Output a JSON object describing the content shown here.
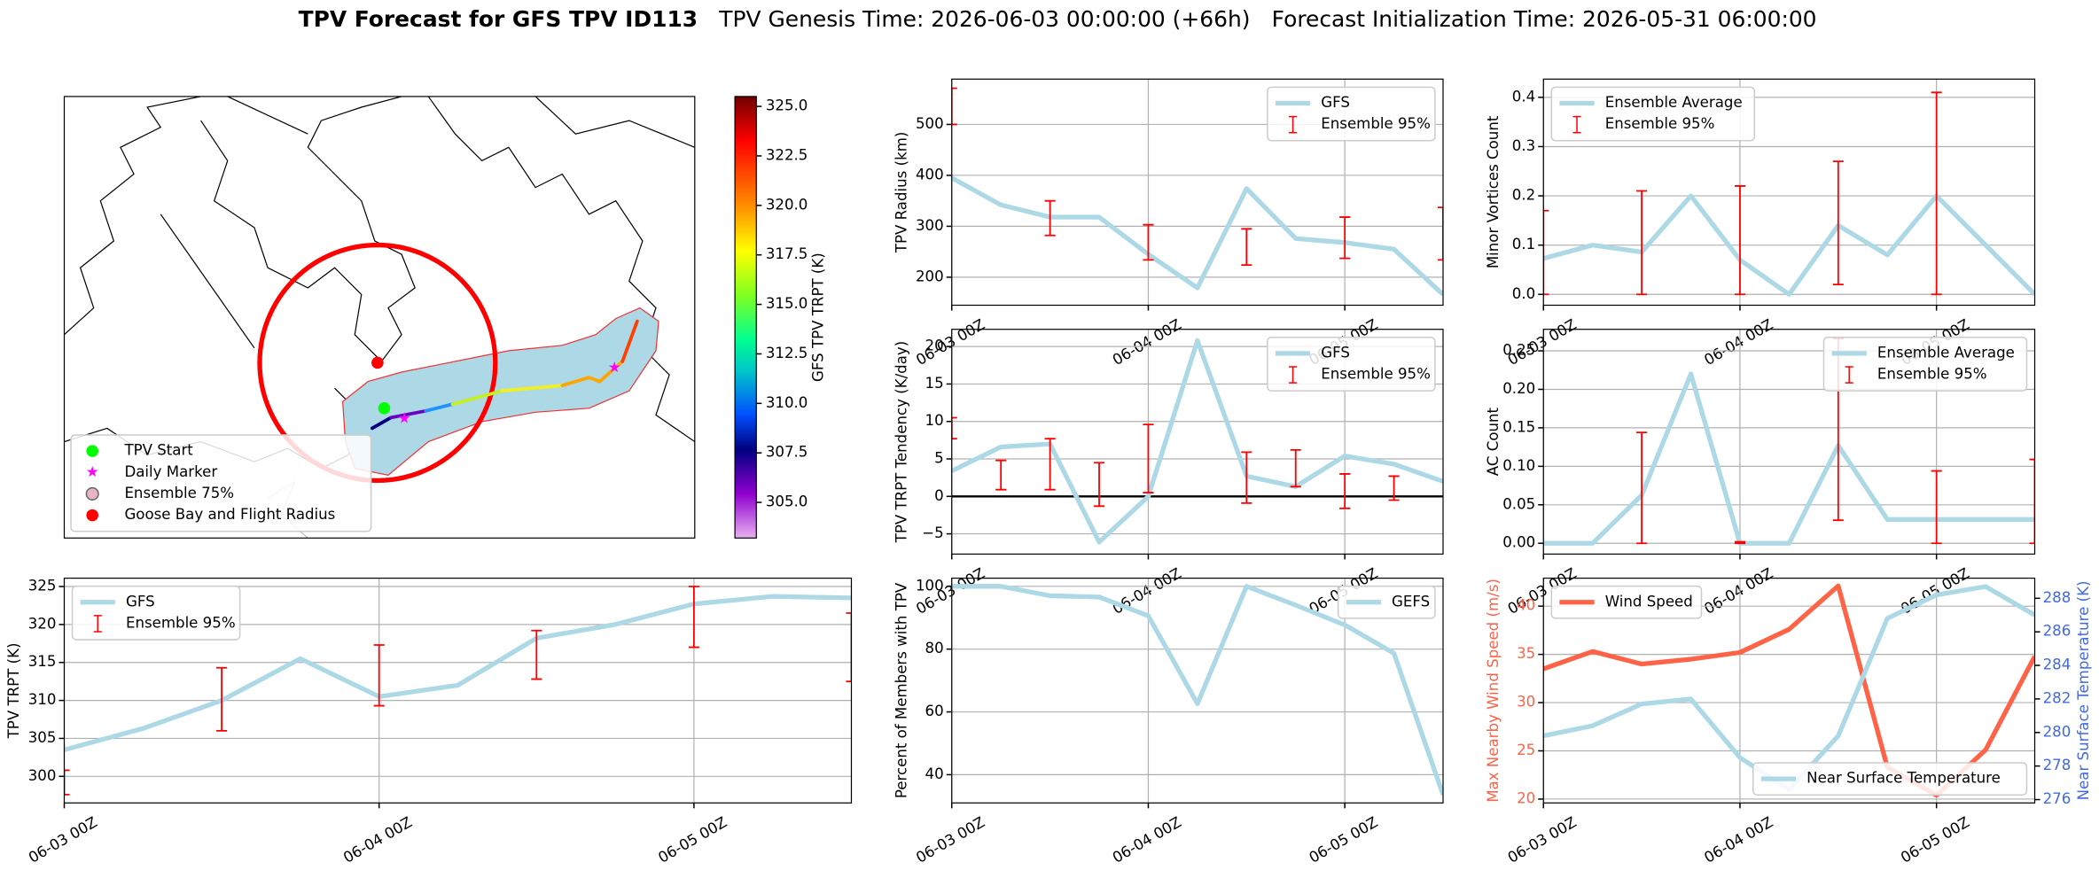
{
  "title": {
    "main": "TPV Forecast for GFS TPV ID113",
    "genesis": "TPV Genesis Time: 2026-06-03 00:00:00 (+66h)",
    "init": "Forecast Initialization Time: 2026-05-31 06:00:00"
  },
  "chart_data": [
    {
      "type": "map",
      "legend_loc": "lower left",
      "legend": [
        {
          "name": "TPV Start",
          "color": "#00ff00",
          "marker": "circle"
        },
        {
          "name": "Daily Marker",
          "color": "#ff00ff",
          "marker": "star"
        },
        {
          "name": "Ensemble 75%",
          "color": "#e8b4c8",
          "marker": "ring"
        },
        {
          "name": "Goose Bay and Flight Radius",
          "color": "#ff0000",
          "marker": "circle"
        }
      ],
      "colorbar": {
        "label": "GFS TPV TRPT (K)",
        "lim": [
          303.2,
          325.5
        ],
        "ticks": [
          {
            "value": 305,
            "label": "305.0"
          },
          {
            "value": 307.5,
            "label": "307.5"
          },
          {
            "value": 310,
            "label": "310.0"
          },
          {
            "value": 312.5,
            "label": "312.5"
          },
          {
            "value": 315,
            "label": "315.0"
          },
          {
            "value": 317.5,
            "label": "317.5"
          },
          {
            "value": 320,
            "label": "320.0"
          },
          {
            "value": 322.5,
            "label": "322.5"
          },
          {
            "value": 325,
            "label": "325.0"
          }
        ]
      }
    },
    {
      "type": "line",
      "ylabel": "TPV Radius (km)",
      "legend": "upper right",
      "grid": true,
      "categories": [
        "06-03 00Z",
        null,
        null,
        null,
        "06-04 00Z",
        null,
        null,
        null,
        "06-05 00Z",
        null,
        null
      ],
      "ylim": [
        145,
        589
      ],
      "yticks": [
        200,
        300,
        400,
        500
      ],
      "series": [
        {
          "name": "GFS",
          "color": "#add8e6",
          "values": [
            395,
            342,
            318,
            318,
            245,
            179,
            374,
            276,
            268,
            255,
            166
          ]
        },
        {
          "name": "Ensemble 95%",
          "color": "#ff0000",
          "type": "errorbar",
          "low": [
            500,
            null,
            282,
            null,
            234,
            null,
            224,
            null,
            237,
            null,
            234
          ],
          "high": [
            571,
            null,
            350,
            null,
            303,
            null,
            295,
            null,
            318,
            null,
            337
          ]
        }
      ]
    },
    {
      "type": "line",
      "ylabel": "Minor Vortices Count",
      "legend": "upper left",
      "grid": true,
      "categories": [
        "06-03 00Z",
        null,
        null,
        null,
        "06-04 00Z",
        null,
        null,
        null,
        "06-05 00Z",
        null,
        null
      ],
      "ylim": [
        -0.022,
        0.437
      ],
      "yticks": [
        {
          "value": 0,
          "label": "0.0"
        },
        0.1,
        0.2,
        0.3,
        0.4
      ],
      "series": [
        {
          "name": "Ensemble Average",
          "color": "#add8e6",
          "values": [
            0.073,
            0.1,
            0.086,
            0.2,
            0.07,
            0,
            0.14,
            0.08,
            0.2,
            0.1,
            0
          ]
        },
        {
          "name": "Ensemble 95%",
          "color": "#ff0000",
          "type": "errorbar",
          "low": [
            0,
            null,
            0,
            null,
            0,
            null,
            0.02,
            null,
            0,
            null,
            null
          ],
          "high": [
            0.17,
            null,
            0.21,
            null,
            0.22,
            null,
            0.27,
            null,
            0.41,
            null,
            null
          ]
        }
      ]
    },
    {
      "type": "line",
      "ylabel": "TPV TRPT Tendency (K/day)",
      "legend": "upper right",
      "grid": true,
      "hline": 0,
      "categories": [
        "06-03 00Z",
        null,
        null,
        null,
        "06-04 00Z",
        null,
        null,
        null,
        "06-05 00Z",
        null,
        null
      ],
      "ylim": [
        -7.7,
        22.3
      ],
      "yticks": [
        {
          "value": -5,
          "label": "−5"
        },
        0,
        5,
        10,
        15,
        20
      ],
      "series": [
        {
          "name": "GFS",
          "color": "#add8e6",
          "values": [
            3.4,
            6.6,
            7.0,
            -6.1,
            0,
            20.8,
            2.7,
            1.3,
            5.4,
            4.3,
            2.0
          ]
        },
        {
          "name": "Ensemble 95%",
          "color": "#ff0000",
          "type": "errorbar",
          "low": [
            7.7,
            0.9,
            0.9,
            -1.3,
            0.5,
            null,
            -0.9,
            1.3,
            -1.6,
            -0.5,
            null
          ],
          "high": [
            10.5,
            4.8,
            7.7,
            4.5,
            9.6,
            null,
            5.9,
            6.2,
            3.0,
            2.7,
            null
          ]
        }
      ]
    },
    {
      "type": "line",
      "ylabel": "AC Count",
      "legend": "upper right",
      "grid": true,
      "categories": [
        "06-03 00Z",
        null,
        null,
        null,
        "06-04 00Z",
        null,
        null,
        null,
        "06-05 00Z",
        null,
        null
      ],
      "ylim": [
        -0.014,
        0.278
      ],
      "yticks": [
        {
          "value": 0,
          "label": "0.00"
        },
        0.05,
        {
          "value": 0.1,
          "label": "0.10"
        },
        0.15,
        {
          "value": 0.2,
          "label": "0.20"
        },
        0.25
      ],
      "series": [
        {
          "name": "Ensemble Average",
          "color": "#add8e6",
          "values": [
            0,
            0,
            0.0625,
            0.22,
            0,
            0,
            0.127,
            0.031,
            0.031,
            0.031,
            0.031
          ]
        },
        {
          "name": "Ensemble 95%",
          "color": "#ff0000",
          "type": "errorbar",
          "low": [
            null,
            null,
            0,
            null,
            0,
            null,
            0.03,
            null,
            0,
            null,
            0
          ],
          "high": [
            null,
            null,
            0.144,
            null,
            0.002,
            null,
            0.266,
            null,
            0.094,
            null,
            0.109
          ]
        }
      ]
    },
    {
      "type": "line",
      "ylabel": "TPV TRPT (K)",
      "legend": "upper left",
      "grid": true,
      "categories": [
        "06-03 00Z",
        null,
        null,
        null,
        "06-04 00Z",
        null,
        null,
        null,
        "06-05 00Z",
        null,
        null
      ],
      "ylim": [
        296.5,
        326.1
      ],
      "yticks": [
        300,
        305,
        310,
        315,
        320,
        325
      ],
      "series": [
        {
          "name": "GFS",
          "color": "#add8e6",
          "values": [
            303.5,
            306.3,
            310,
            315.5,
            310.5,
            312,
            318.2,
            320,
            322.7,
            323.7,
            323.5
          ]
        },
        {
          "name": "Ensemble 95%",
          "color": "#ff0000",
          "type": "errorbar",
          "low": [
            297.6,
            null,
            306,
            null,
            309.3,
            null,
            312.8,
            null,
            317,
            null,
            312.5
          ],
          "high": [
            300.8,
            null,
            314.3,
            null,
            317.3,
            null,
            319.2,
            null,
            325,
            null,
            321.5
          ]
        }
      ]
    },
    {
      "type": "line",
      "ylabel": "Percent of Members with TPV",
      "legend": "upper right",
      "grid": true,
      "categories": [
        "06-03 00Z",
        null,
        null,
        null,
        "06-04 00Z",
        null,
        null,
        null,
        "06-05 00Z",
        null,
        null
      ],
      "ylim": [
        31,
        102.6
      ],
      "yticks": [
        40,
        60,
        80,
        100
      ],
      "series": [
        {
          "name": "GEFS",
          "color": "#add8e6",
          "values": [
            100,
            100,
            97,
            96.6,
            90.6,
            62.6,
            100,
            94,
            87.7,
            78.7,
            33.6
          ]
        }
      ]
    },
    {
      "type": "line",
      "ylabel": "Max Nearby Wind Speed (m/s)",
      "ylabel_color": "#ff6347",
      "y2label": "Near Surface Temperature (K)",
      "y2label_color": "#4169e1",
      "grid": true,
      "categories": [
        "06-03 00Z",
        null,
        null,
        null,
        "06-04 00Z",
        null,
        null,
        null,
        "06-05 00Z",
        null,
        null
      ],
      "ylim": [
        19.6,
        42.9
      ],
      "yticks": [
        20,
        25,
        30,
        35,
        40
      ],
      "y2lim": [
        275.8,
        289.2
      ],
      "y2ticks": [
        276,
        278,
        280,
        282,
        284,
        286,
        288
      ],
      "series": [
        {
          "name": "Wind Speed",
          "color": "#ff6347",
          "legend": "upper left",
          "values": [
            33.5,
            35.3,
            34,
            34.5,
            35.2,
            37.6,
            42.1,
            23.3,
            20.4,
            25.1,
            34.8
          ]
        },
        {
          "name": "Near Surface Temperature",
          "color": "#add8e6",
          "legend": "lower right",
          "axis": "y2",
          "values": [
            279.8,
            280.4,
            281.7,
            282.0,
            278.5,
            276.6,
            279.8,
            286.8,
            288.2,
            288.7,
            287.0
          ]
        }
      ]
    }
  ]
}
